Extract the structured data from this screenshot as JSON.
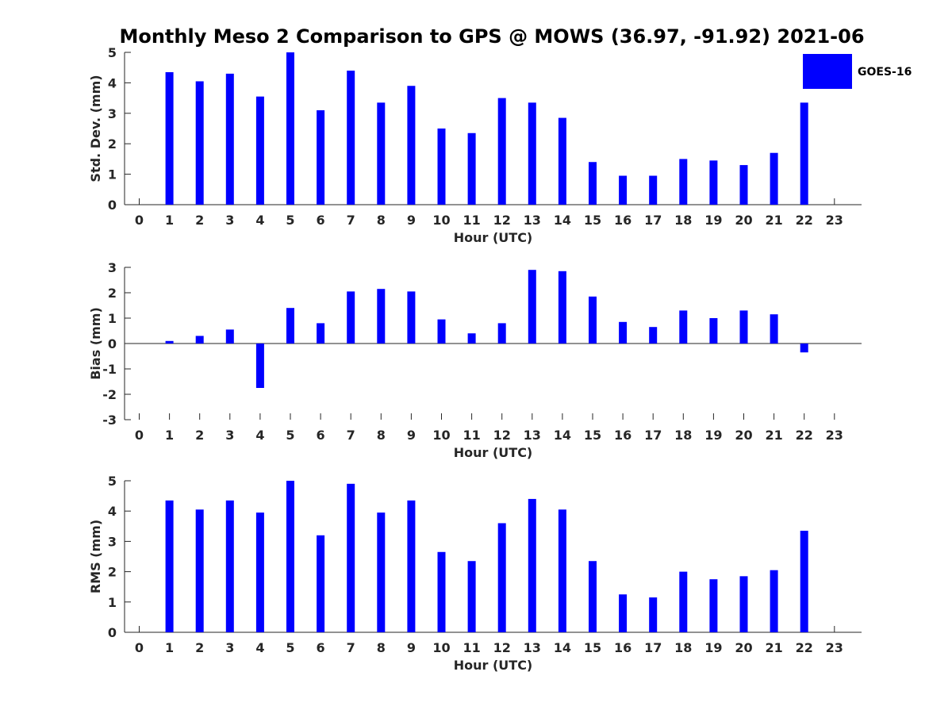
{
  "figure": {
    "title": "Monthly Meso 2 Comparison to GPS @ MOWS (36.97, -91.92) 2021-06"
  },
  "legend": {
    "label": "GOES-16",
    "color": "#0000ff"
  },
  "chart_data": [
    {
      "type": "bar",
      "xlabel": "Hour (UTC)",
      "ylabel": "Std. Dev. (mm)",
      "ylim": [
        0,
        5
      ],
      "yticks": [
        0,
        1,
        2,
        3,
        4,
        5
      ],
      "x": [
        0,
        1,
        2,
        3,
        4,
        5,
        6,
        7,
        8,
        9,
        10,
        11,
        12,
        13,
        14,
        15,
        16,
        17,
        18,
        19,
        20,
        21,
        22,
        23
      ],
      "series": [
        {
          "name": "GOES-16",
          "color": "#0000ff",
          "values": [
            null,
            4.35,
            4.05,
            4.3,
            3.55,
            5.0,
            3.1,
            4.4,
            3.35,
            3.9,
            2.5,
            2.35,
            3.5,
            3.35,
            2.85,
            1.4,
            0.95,
            0.95,
            1.5,
            1.45,
            1.3,
            1.7,
            3.35,
            null
          ]
        }
      ]
    },
    {
      "type": "bar",
      "xlabel": "Hour (UTC)",
      "ylabel": "Bias (mm)",
      "ylim": [
        -3,
        3
      ],
      "yticks": [
        -3,
        -2,
        -1,
        0,
        1,
        2,
        3
      ],
      "x": [
        0,
        1,
        2,
        3,
        4,
        5,
        6,
        7,
        8,
        9,
        10,
        11,
        12,
        13,
        14,
        15,
        16,
        17,
        18,
        19,
        20,
        21,
        22,
        23
      ],
      "series": [
        {
          "name": "GOES-16",
          "color": "#0000ff",
          "values": [
            null,
            0.1,
            0.3,
            0.55,
            -1.75,
            1.4,
            0.8,
            2.05,
            2.15,
            2.05,
            0.95,
            0.4,
            0.8,
            2.9,
            2.85,
            1.85,
            0.85,
            0.65,
            1.3,
            1.0,
            1.3,
            1.15,
            -0.35,
            null
          ]
        }
      ]
    },
    {
      "type": "bar",
      "xlabel": "Hour (UTC)",
      "ylabel": "RMS (mm)",
      "ylim": [
        0,
        5
      ],
      "yticks": [
        0,
        1,
        2,
        3,
        4,
        5
      ],
      "x": [
        0,
        1,
        2,
        3,
        4,
        5,
        6,
        7,
        8,
        9,
        10,
        11,
        12,
        13,
        14,
        15,
        16,
        17,
        18,
        19,
        20,
        21,
        22,
        23
      ],
      "series": [
        {
          "name": "GOES-16",
          "color": "#0000ff",
          "values": [
            null,
            4.35,
            4.05,
            4.35,
            3.95,
            5.0,
            3.2,
            4.9,
            3.95,
            4.35,
            2.65,
            2.35,
            3.6,
            4.4,
            4.05,
            2.35,
            1.25,
            1.15,
            2.0,
            1.75,
            1.85,
            2.05,
            3.35,
            null
          ]
        }
      ]
    }
  ]
}
